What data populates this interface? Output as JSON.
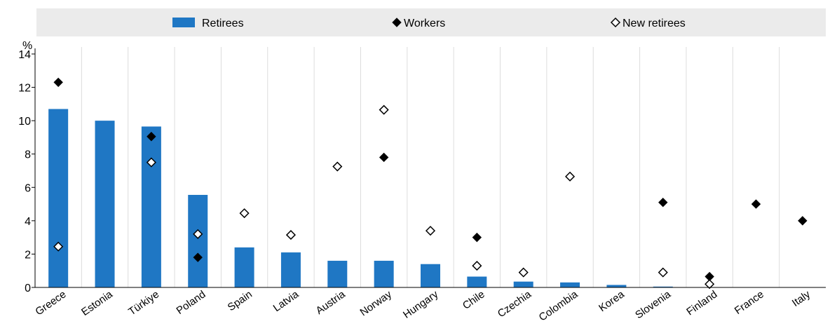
{
  "chart_data": {
    "type": "bar",
    "title": "",
    "xlabel": "",
    "ylabel": "%",
    "ylim": [
      0,
      14
    ],
    "yticks": [
      0,
      2,
      4,
      6,
      8,
      10,
      12,
      14
    ],
    "grid": "vertical separators between categories",
    "legend_position": "top",
    "categories": [
      "Greece",
      "Estonia",
      "Türkiye",
      "Poland",
      "Spain",
      "Latvia",
      "Austria",
      "Norway",
      "Hungary",
      "Chile",
      "Czechia",
      "Colombia",
      "Korea",
      "Slovenia",
      "Finland",
      "France",
      "Italy"
    ],
    "series": [
      {
        "name": "Retirees",
        "type": "bar",
        "color": "#1f77c4",
        "values": [
          10.7,
          10.0,
          9.65,
          5.55,
          2.4,
          2.1,
          1.6,
          1.6,
          1.4,
          0.65,
          0.35,
          0.3,
          0.15,
          0.05,
          null,
          null,
          null
        ]
      },
      {
        "name": "Workers",
        "type": "marker",
        "marker": "filled-diamond",
        "color": "#000000",
        "values": [
          12.3,
          null,
          9.05,
          1.8,
          null,
          null,
          null,
          7.8,
          null,
          3.0,
          null,
          null,
          null,
          5.1,
          0.65,
          5.0,
          4.0
        ]
      },
      {
        "name": "New retirees",
        "type": "marker",
        "marker": "hollow-diamond",
        "color": "#000000",
        "values": [
          2.45,
          null,
          7.5,
          3.2,
          4.45,
          3.15,
          7.25,
          10.65,
          3.4,
          1.3,
          0.9,
          6.65,
          null,
          0.9,
          0.2,
          null,
          null
        ]
      }
    ]
  }
}
